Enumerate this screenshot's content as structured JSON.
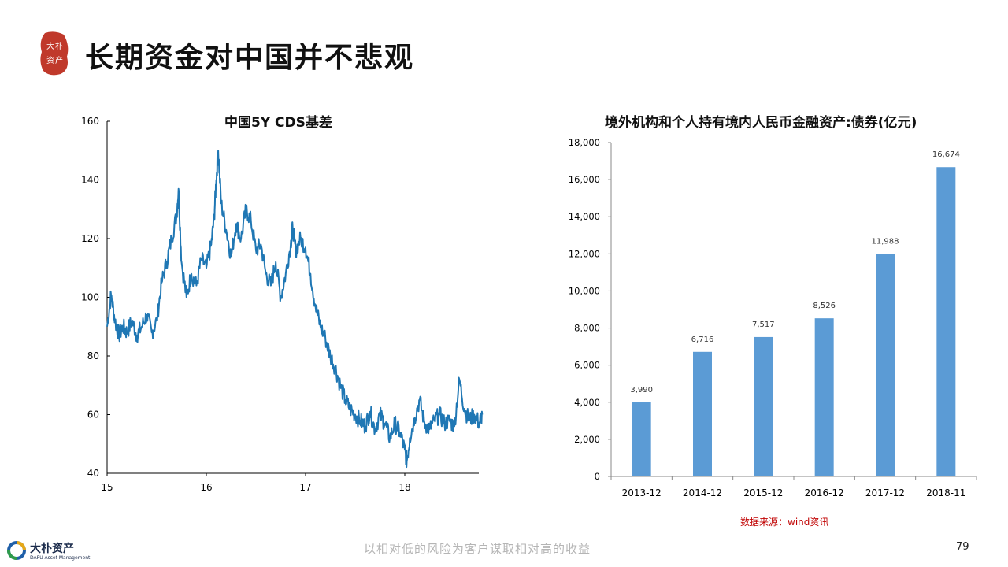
{
  "header": {
    "title": "长期资金对中国并不悲观",
    "seal_text": "大朴资产",
    "seal_color": "#c0392b"
  },
  "charts_meta": {
    "line_color": "#1f77b4",
    "bar_color": "#5b9bd5"
  },
  "chart_data": [
    {
      "type": "line",
      "title": "中国5Y CDS基差",
      "xlabel": "",
      "ylabel": "",
      "x_ticks": [
        "15",
        "16",
        "17",
        "18"
      ],
      "ylim": [
        40,
        160
      ],
      "y_ticks": [
        40,
        60,
        80,
        100,
        120,
        140,
        160
      ],
      "grid": false,
      "series": [
        {
          "x": [
            2015.0,
            2015.04,
            2015.08,
            2015.12,
            2015.16,
            2015.2,
            2015.25,
            2015.3,
            2015.35,
            2015.4,
            2015.45,
            2015.5,
            2015.55,
            2015.6,
            2015.65,
            2015.7,
            2015.72,
            2015.75,
            2015.8,
            2015.85,
            2015.9,
            2015.95,
            2016.0,
            2016.05,
            2016.08,
            2016.1,
            2016.12,
            2016.15,
            2016.2,
            2016.25,
            2016.3,
            2016.35,
            2016.4,
            2016.45,
            2016.5,
            2016.55,
            2016.6,
            2016.65,
            2016.7,
            2016.75,
            2016.8,
            2016.85,
            2016.87,
            2016.9,
            2016.95,
            2017.0,
            2017.05,
            2017.1,
            2017.15,
            2017.2,
            2017.25,
            2017.3,
            2017.35,
            2017.4,
            2017.45,
            2017.5,
            2017.55,
            2017.6,
            2017.65,
            2017.7,
            2017.75,
            2017.8,
            2017.85,
            2017.9,
            2017.95,
            2018.0,
            2018.02,
            2018.05,
            2018.1,
            2018.15,
            2018.2,
            2018.25,
            2018.3,
            2018.35,
            2018.4,
            2018.45,
            2018.5,
            2018.55,
            2018.6,
            2018.65,
            2018.7,
            2018.75,
            2018.78
          ],
          "y": [
            90,
            101,
            92,
            87,
            90,
            88,
            92,
            87,
            90,
            94,
            88,
            92,
            105,
            112,
            120,
            128,
            137,
            112,
            100,
            108,
            104,
            113,
            110,
            118,
            128,
            140,
            150,
            132,
            123,
            114,
            125,
            120,
            130,
            126,
            116,
            118,
            108,
            104,
            112,
            100,
            108,
            118,
            124,
            116,
            120,
            117,
            108,
            97,
            90,
            86,
            80,
            76,
            70,
            65,
            62,
            60,
            58,
            56,
            61,
            55,
            60,
            57,
            52,
            57,
            54,
            48,
            44,
            52,
            59,
            65,
            57,
            55,
            58,
            60,
            57,
            58,
            56,
            72,
            62,
            58,
            60,
            57,
            60
          ]
        }
      ]
    },
    {
      "type": "bar",
      "title": "境外机构和个人持有境内人民币金融资产:债券(亿元)",
      "xlabel": "",
      "ylabel": "",
      "categories": [
        "2013-12",
        "2014-12",
        "2015-12",
        "2016-12",
        "2017-12",
        "2018-11"
      ],
      "values": [
        3990,
        6716,
        7517,
        8526,
        11988,
        16674
      ],
      "value_labels": [
        "3,990",
        "6,716",
        "7,517",
        "8,526",
        "11,988",
        "16,674"
      ],
      "ylim": [
        0,
        18000
      ],
      "y_ticks": [
        "0",
        "2,000",
        "4,000",
        "6,000",
        "8,000",
        "10,000",
        "12,000",
        "14,000",
        "16,000",
        "18,000"
      ],
      "grid": false
    }
  ],
  "source_note": "数据来源：wind资讯",
  "footer": {
    "brand": "大朴资产",
    "brand_en": "DAPU Asset Management",
    "slogan": "以相对低的风险为客户谋取相对高的收益",
    "page_number": "79"
  }
}
